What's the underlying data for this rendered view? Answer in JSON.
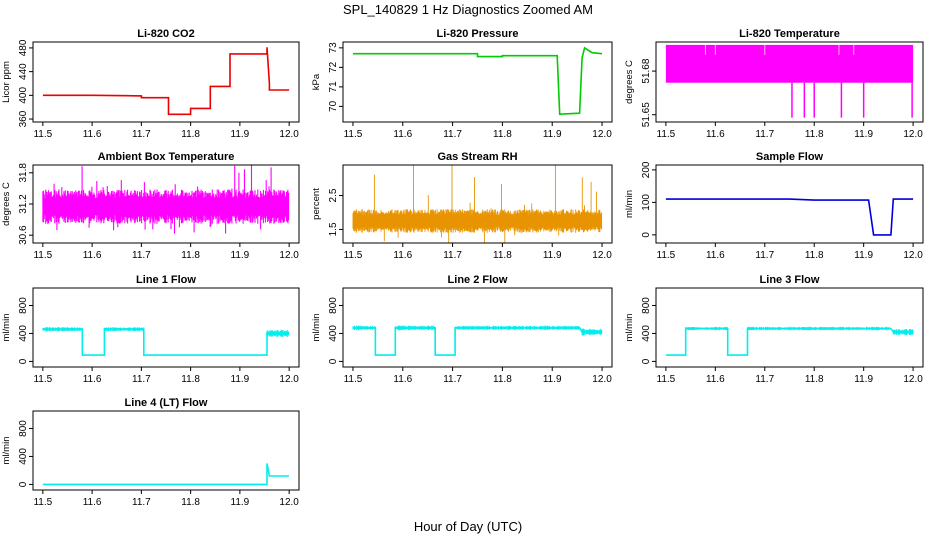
{
  "main_title": "SPL_140829  1 Hz Diagnostics Zoomed AM",
  "x_axis_label": "Hour of Day (UTC)",
  "colors": {
    "red": "#ee0000",
    "green": "#00cc00",
    "magenta": "#ff00ff",
    "orange": "#e89400",
    "blue": "#0000dd",
    "cyan": "#00eeee"
  },
  "chart_data": [
    {
      "type": "line",
      "title": "Li-820 CO2",
      "ylabel": "Licor ppm",
      "color": "red",
      "xlim": [
        11.48,
        12.02
      ],
      "ylim": [
        355,
        490
      ],
      "xticks": [
        "11.5",
        "11.6",
        "11.7",
        "11.8",
        "11.9",
        "12.0"
      ],
      "yticks": [
        "360",
        "400",
        "440",
        "480"
      ],
      "series": [
        {
          "name": "co2",
          "points": [
            [
              11.5,
              400
            ],
            [
              11.6,
              400
            ],
            [
              11.7,
              399
            ],
            [
              11.7,
              396
            ],
            [
              11.755,
              396
            ],
            [
              11.755,
              368
            ],
            [
              11.8,
              368
            ],
            [
              11.8,
              378
            ],
            [
              11.84,
              378
            ],
            [
              11.84,
              415
            ],
            [
              11.88,
              415
            ],
            [
              11.88,
              470
            ],
            [
              11.955,
              470
            ],
            [
              11.955,
              481
            ],
            [
              11.96,
              420
            ],
            [
              11.96,
              409
            ],
            [
              12.0,
              409
            ]
          ]
        }
      ]
    },
    {
      "type": "line",
      "title": "Li-820 Pressure",
      "ylabel": "kPa",
      "color": "green",
      "xlim": [
        11.48,
        12.02
      ],
      "ylim": [
        69.2,
        73.3
      ],
      "xticks": [
        "11.5",
        "11.6",
        "11.7",
        "11.8",
        "11.9",
        "12.0"
      ],
      "yticks": [
        "70",
        "71",
        "72",
        "73"
      ],
      "series": [
        {
          "name": "pressure",
          "points": [
            [
              11.5,
              72.7
            ],
            [
              11.75,
              72.7
            ],
            [
              11.75,
              72.55
            ],
            [
              11.8,
              72.55
            ],
            [
              11.8,
              72.6
            ],
            [
              11.91,
              72.6
            ],
            [
              11.915,
              69.6
            ],
            [
              11.955,
              69.65
            ],
            [
              11.96,
              72.5
            ],
            [
              11.965,
              73.0
            ],
            [
              11.98,
              72.75
            ],
            [
              12.0,
              72.7
            ]
          ]
        }
      ]
    },
    {
      "type": "band",
      "title": "Li-820 Temperature",
      "ylabel": "degrees C",
      "color": "magenta",
      "xlim": [
        11.48,
        12.02
      ],
      "ylim": [
        51.645,
        51.7
      ],
      "xticks": [
        "11.5",
        "11.6",
        "11.7",
        "11.8",
        "11.9",
        "12.0"
      ],
      "yticks": [
        "51.65",
        "51.68"
      ],
      "band": {
        "x0": 11.5,
        "x1": 12.0,
        "low": 51.672,
        "high": 51.698
      },
      "spikes_down": [
        [
          11.755,
          51.648
        ],
        [
          11.78,
          51.648
        ],
        [
          11.8,
          51.648
        ],
        [
          11.855,
          51.648
        ],
        [
          11.9,
          51.648
        ],
        [
          11.998,
          51.648
        ]
      ],
      "spikes_up": [
        11.58,
        11.6,
        11.7,
        11.85,
        11.88
      ]
    },
    {
      "type": "noise",
      "title": "Ambient Box Temperature",
      "ylabel": "degrees C",
      "color": "magenta",
      "xlim": [
        11.48,
        12.02
      ],
      "ylim": [
        30.45,
        31.95
      ],
      "xticks": [
        "11.5",
        "11.6",
        "11.7",
        "11.8",
        "11.9",
        "12.0"
      ],
      "yticks": [
        "30.6",
        "31.2",
        "31.8"
      ],
      "noise": {
        "center": 31.15,
        "amp": 0.33,
        "spike": 0.55,
        "density": 0.9
      }
    },
    {
      "type": "noise",
      "title": "Gas Stream RH",
      "ylabel": "percent",
      "color": "orange",
      "xlim": [
        11.48,
        12.02
      ],
      "ylim": [
        1.1,
        3.4
      ],
      "xticks": [
        "11.5",
        "11.6",
        "11.7",
        "11.8",
        "11.9",
        "12.0"
      ],
      "yticks": [
        "1.5",
        "2.5"
      ],
      "noise": {
        "center": 1.75,
        "amp": 0.35,
        "spike": 1.5,
        "density": 0.45
      }
    },
    {
      "type": "line",
      "title": "Sample Flow",
      "ylabel": "ml/min",
      "color": "blue",
      "xlim": [
        11.48,
        12.02
      ],
      "ylim": [
        -25,
        215
      ],
      "xticks": [
        "11.5",
        "11.6",
        "11.7",
        "11.8",
        "11.9",
        "12.0"
      ],
      "yticks": [
        "0",
        "100",
        "200"
      ],
      "series": [
        {
          "name": "sample_flow",
          "points": [
            [
              11.5,
              110
            ],
            [
              11.75,
              110
            ],
            [
              11.8,
              107
            ],
            [
              11.91,
              107
            ],
            [
              11.92,
              0
            ],
            [
              11.955,
              0
            ],
            [
              11.96,
              110
            ],
            [
              12.0,
              110
            ]
          ]
        }
      ]
    },
    {
      "type": "line",
      "title": "Line 1 Flow",
      "ylabel": "ml/min",
      "color": "cyan",
      "xlim": [
        11.48,
        12.02
      ],
      "ylim": [
        -80,
        1050
      ],
      "xticks": [
        "11.5",
        "11.6",
        "11.7",
        "11.8",
        "11.9",
        "12.0"
      ],
      "yticks": [
        "0",
        "400",
        "800"
      ],
      "series": [
        {
          "name": "line1",
          "points": [
            [
              11.5,
              460
            ],
            [
              11.58,
              460
            ],
            [
              11.58,
              90
            ],
            [
              11.625,
              90
            ],
            [
              11.625,
              460
            ],
            [
              11.705,
              460
            ],
            [
              11.705,
              90
            ],
            [
              11.955,
              90
            ],
            [
              11.955,
              400
            ],
            [
              12.0,
              400
            ]
          ]
        }
      ],
      "jitter": [
        [
          11.5,
          11.58,
          30
        ],
        [
          11.625,
          11.705,
          30
        ],
        [
          11.955,
          12.0,
          55
        ]
      ]
    },
    {
      "type": "line",
      "title": "Line 2 Flow",
      "ylabel": "ml/min",
      "color": "cyan",
      "xlim": [
        11.48,
        12.02
      ],
      "ylim": [
        -80,
        1050
      ],
      "xticks": [
        "11.5",
        "11.6",
        "11.7",
        "11.8",
        "11.9",
        "12.0"
      ],
      "yticks": [
        "0",
        "400",
        "800"
      ],
      "series": [
        {
          "name": "line2",
          "points": [
            [
              11.5,
              480
            ],
            [
              11.545,
              480
            ],
            [
              11.545,
              90
            ],
            [
              11.585,
              90
            ],
            [
              11.585,
              480
            ],
            [
              11.665,
              480
            ],
            [
              11.665,
              90
            ],
            [
              11.705,
              90
            ],
            [
              11.705,
              480
            ],
            [
              11.955,
              480
            ],
            [
              11.96,
              420
            ],
            [
              12.0,
              420
            ]
          ]
        }
      ],
      "jitter": [
        [
          11.5,
          11.545,
          35
        ],
        [
          11.585,
          11.665,
          35
        ],
        [
          11.705,
          11.955,
          30
        ],
        [
          11.96,
          12.0,
          50
        ]
      ]
    },
    {
      "type": "line",
      "title": "Line 3 Flow",
      "ylabel": "ml/min",
      "color": "cyan",
      "xlim": [
        11.48,
        12.02
      ],
      "ylim": [
        -80,
        1050
      ],
      "xticks": [
        "11.5",
        "11.6",
        "11.7",
        "11.8",
        "11.9",
        "12.0"
      ],
      "yticks": [
        "0",
        "400",
        "800"
      ],
      "series": [
        {
          "name": "line3",
          "points": [
            [
              11.5,
              90
            ],
            [
              11.54,
              90
            ],
            [
              11.54,
              470
            ],
            [
              11.625,
              470
            ],
            [
              11.625,
              90
            ],
            [
              11.665,
              90
            ],
            [
              11.665,
              470
            ],
            [
              11.955,
              470
            ],
            [
              11.96,
              420
            ],
            [
              12.0,
              420
            ]
          ]
        }
      ],
      "jitter": [
        [
          11.54,
          11.625,
          25
        ],
        [
          11.665,
          11.955,
          25
        ],
        [
          11.96,
          12.0,
          45
        ]
      ]
    },
    {
      "type": "line",
      "title": "Line 4 (LT) Flow",
      "ylabel": "ml/min",
      "color": "cyan",
      "xlim": [
        11.48,
        12.02
      ],
      "ylim": [
        -80,
        1050
      ],
      "xticks": [
        "11.5",
        "11.6",
        "11.7",
        "11.8",
        "11.9",
        "12.0"
      ],
      "yticks": [
        "0",
        "400",
        "800"
      ],
      "series": [
        {
          "name": "line4",
          "points": [
            [
              11.5,
              0
            ],
            [
              11.955,
              0
            ],
            [
              11.955,
              300
            ],
            [
              11.96,
              120
            ],
            [
              12.0,
              120
            ]
          ]
        }
      ]
    }
  ]
}
